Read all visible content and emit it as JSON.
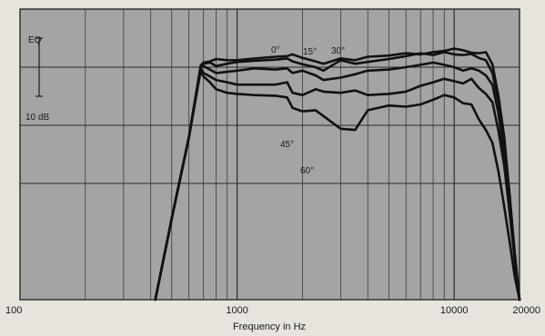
{
  "chart_data": {
    "type": "line",
    "title": "",
    "xlabel": "Frequency in Hz",
    "ylabel": "",
    "x_scale": "log",
    "xlim": [
      100,
      20000
    ],
    "ylim": [
      -40,
      10
    ],
    "grid": true,
    "x_tick_labels": [
      "100",
      "1000",
      "10000",
      "20000"
    ],
    "x_ticks": [
      100,
      1000,
      10000,
      20000
    ],
    "annotations": {
      "eq": "EQ",
      "scale": "10 dB"
    },
    "scale_bar_db": [
      -5,
      5
    ],
    "series": [
      {
        "name": "0°",
        "x": [
          420,
          500,
          600,
          680,
          700,
          750,
          800,
          900,
          1000,
          1200,
          1500,
          1700,
          1800,
          2000,
          2300,
          2500,
          3000,
          3500,
          4000,
          5000,
          6000,
          7000,
          8000,
          9000,
          10000,
          11000,
          12000,
          13000,
          14000,
          15000,
          16000,
          17000,
          18000,
          19000,
          20000
        ],
        "y": [
          -40,
          -26,
          -12,
          0.3,
          0.8,
          1.0,
          1.4,
          1.2,
          1.2,
          1.5,
          1.8,
          1.9,
          2.2,
          1.6,
          1.0,
          0.6,
          1.5,
          1.2,
          1.8,
          2.0,
          2.4,
          2.2,
          2.6,
          2.8,
          3.2,
          2.9,
          2.5,
          2.4,
          2.6,
          0.5,
          -5,
          -12,
          -22,
          -32,
          -40
        ]
      },
      {
        "name": "15°",
        "x": [
          420,
          500,
          600,
          680,
          700,
          750,
          800,
          900,
          1000,
          1200,
          1500,
          1700,
          1800,
          2000,
          2300,
          2500,
          3000,
          3500,
          4000,
          5000,
          6000,
          7000,
          8000,
          9000,
          10000,
          11000,
          12000,
          13000,
          14000,
          15000,
          16000,
          17000,
          18000,
          19000,
          20000
        ],
        "y": [
          -40,
          -26,
          -12,
          0.2,
          0.6,
          0.8,
          0.2,
          0.6,
          0.9,
          1.1,
          1.3,
          1.5,
          1.0,
          0.5,
          0.0,
          -0.6,
          1.2,
          0.6,
          0.9,
          1.4,
          1.9,
          2.4,
          2.1,
          2.6,
          2.2,
          2.1,
          2.3,
          1.6,
          1.2,
          -1,
          -6,
          -13,
          -22,
          -32,
          -40
        ]
      },
      {
        "name": "30°",
        "x": [
          420,
          500,
          600,
          680,
          700,
          750,
          800,
          900,
          1000,
          1200,
          1500,
          1700,
          1800,
          2000,
          2300,
          2500,
          3000,
          3500,
          4000,
          5000,
          6000,
          7000,
          8000,
          9000,
          10000,
          11000,
          12000,
          13000,
          14000,
          15000,
          16000,
          17000,
          18000,
          19000,
          20000
        ],
        "y": [
          -40,
          -26,
          -12,
          0.0,
          0.2,
          -0.4,
          -1.0,
          -0.8,
          -0.6,
          -0.2,
          -0.4,
          -0.2,
          -1.0,
          -0.6,
          -1.4,
          -2.2,
          -1.8,
          -1.2,
          -0.6,
          -0.4,
          0.0,
          0.4,
          0.8,
          0.4,
          0.0,
          -0.6,
          -0.2,
          -0.6,
          -1.4,
          -3,
          -8,
          -15,
          -24,
          -33,
          -40
        ]
      },
      {
        "name": "45°",
        "x": [
          420,
          500,
          600,
          680,
          700,
          750,
          800,
          900,
          1000,
          1200,
          1500,
          1700,
          1800,
          2000,
          2300,
          2500,
          3000,
          3500,
          4000,
          5000,
          6000,
          7000,
          8000,
          9000,
          10000,
          11000,
          12000,
          13000,
          14000,
          15000,
          16000,
          17000,
          18000,
          19000,
          20000
        ],
        "y": [
          -40,
          -26,
          -12,
          -0.2,
          -1.0,
          -1.6,
          -2.2,
          -2.6,
          -3.0,
          -3.0,
          -3.0,
          -2.6,
          -4.4,
          -4.8,
          -3.8,
          -4.2,
          -4.4,
          -4.0,
          -4.8,
          -4.6,
          -4.2,
          -3.2,
          -2.6,
          -2.0,
          -2.4,
          -2.8,
          -2.0,
          -3.6,
          -4.6,
          -6,
          -11,
          -17,
          -25,
          -33,
          -40
        ]
      },
      {
        "name": "60°",
        "x": [
          420,
          500,
          600,
          680,
          700,
          750,
          800,
          900,
          1000,
          1200,
          1500,
          1700,
          1800,
          2000,
          2300,
          2500,
          3000,
          3500,
          4000,
          5000,
          6000,
          7000,
          8000,
          9000,
          10000,
          11000,
          12000,
          13000,
          14000,
          15000,
          16000,
          17000,
          18000,
          19000,
          20000
        ],
        "y": [
          -40,
          -26,
          -12,
          -0.6,
          -1.6,
          -2.6,
          -3.8,
          -4.4,
          -4.6,
          -4.8,
          -4.9,
          -5.2,
          -7.0,
          -7.6,
          -7.4,
          -8.4,
          -10.6,
          -10.8,
          -7.4,
          -6.6,
          -6.8,
          -6.4,
          -5.6,
          -4.8,
          -5.2,
          -6.2,
          -6.4,
          -9.0,
          -10.8,
          -13,
          -18,
          -24,
          -30,
          -36,
          -40
        ]
      }
    ]
  }
}
